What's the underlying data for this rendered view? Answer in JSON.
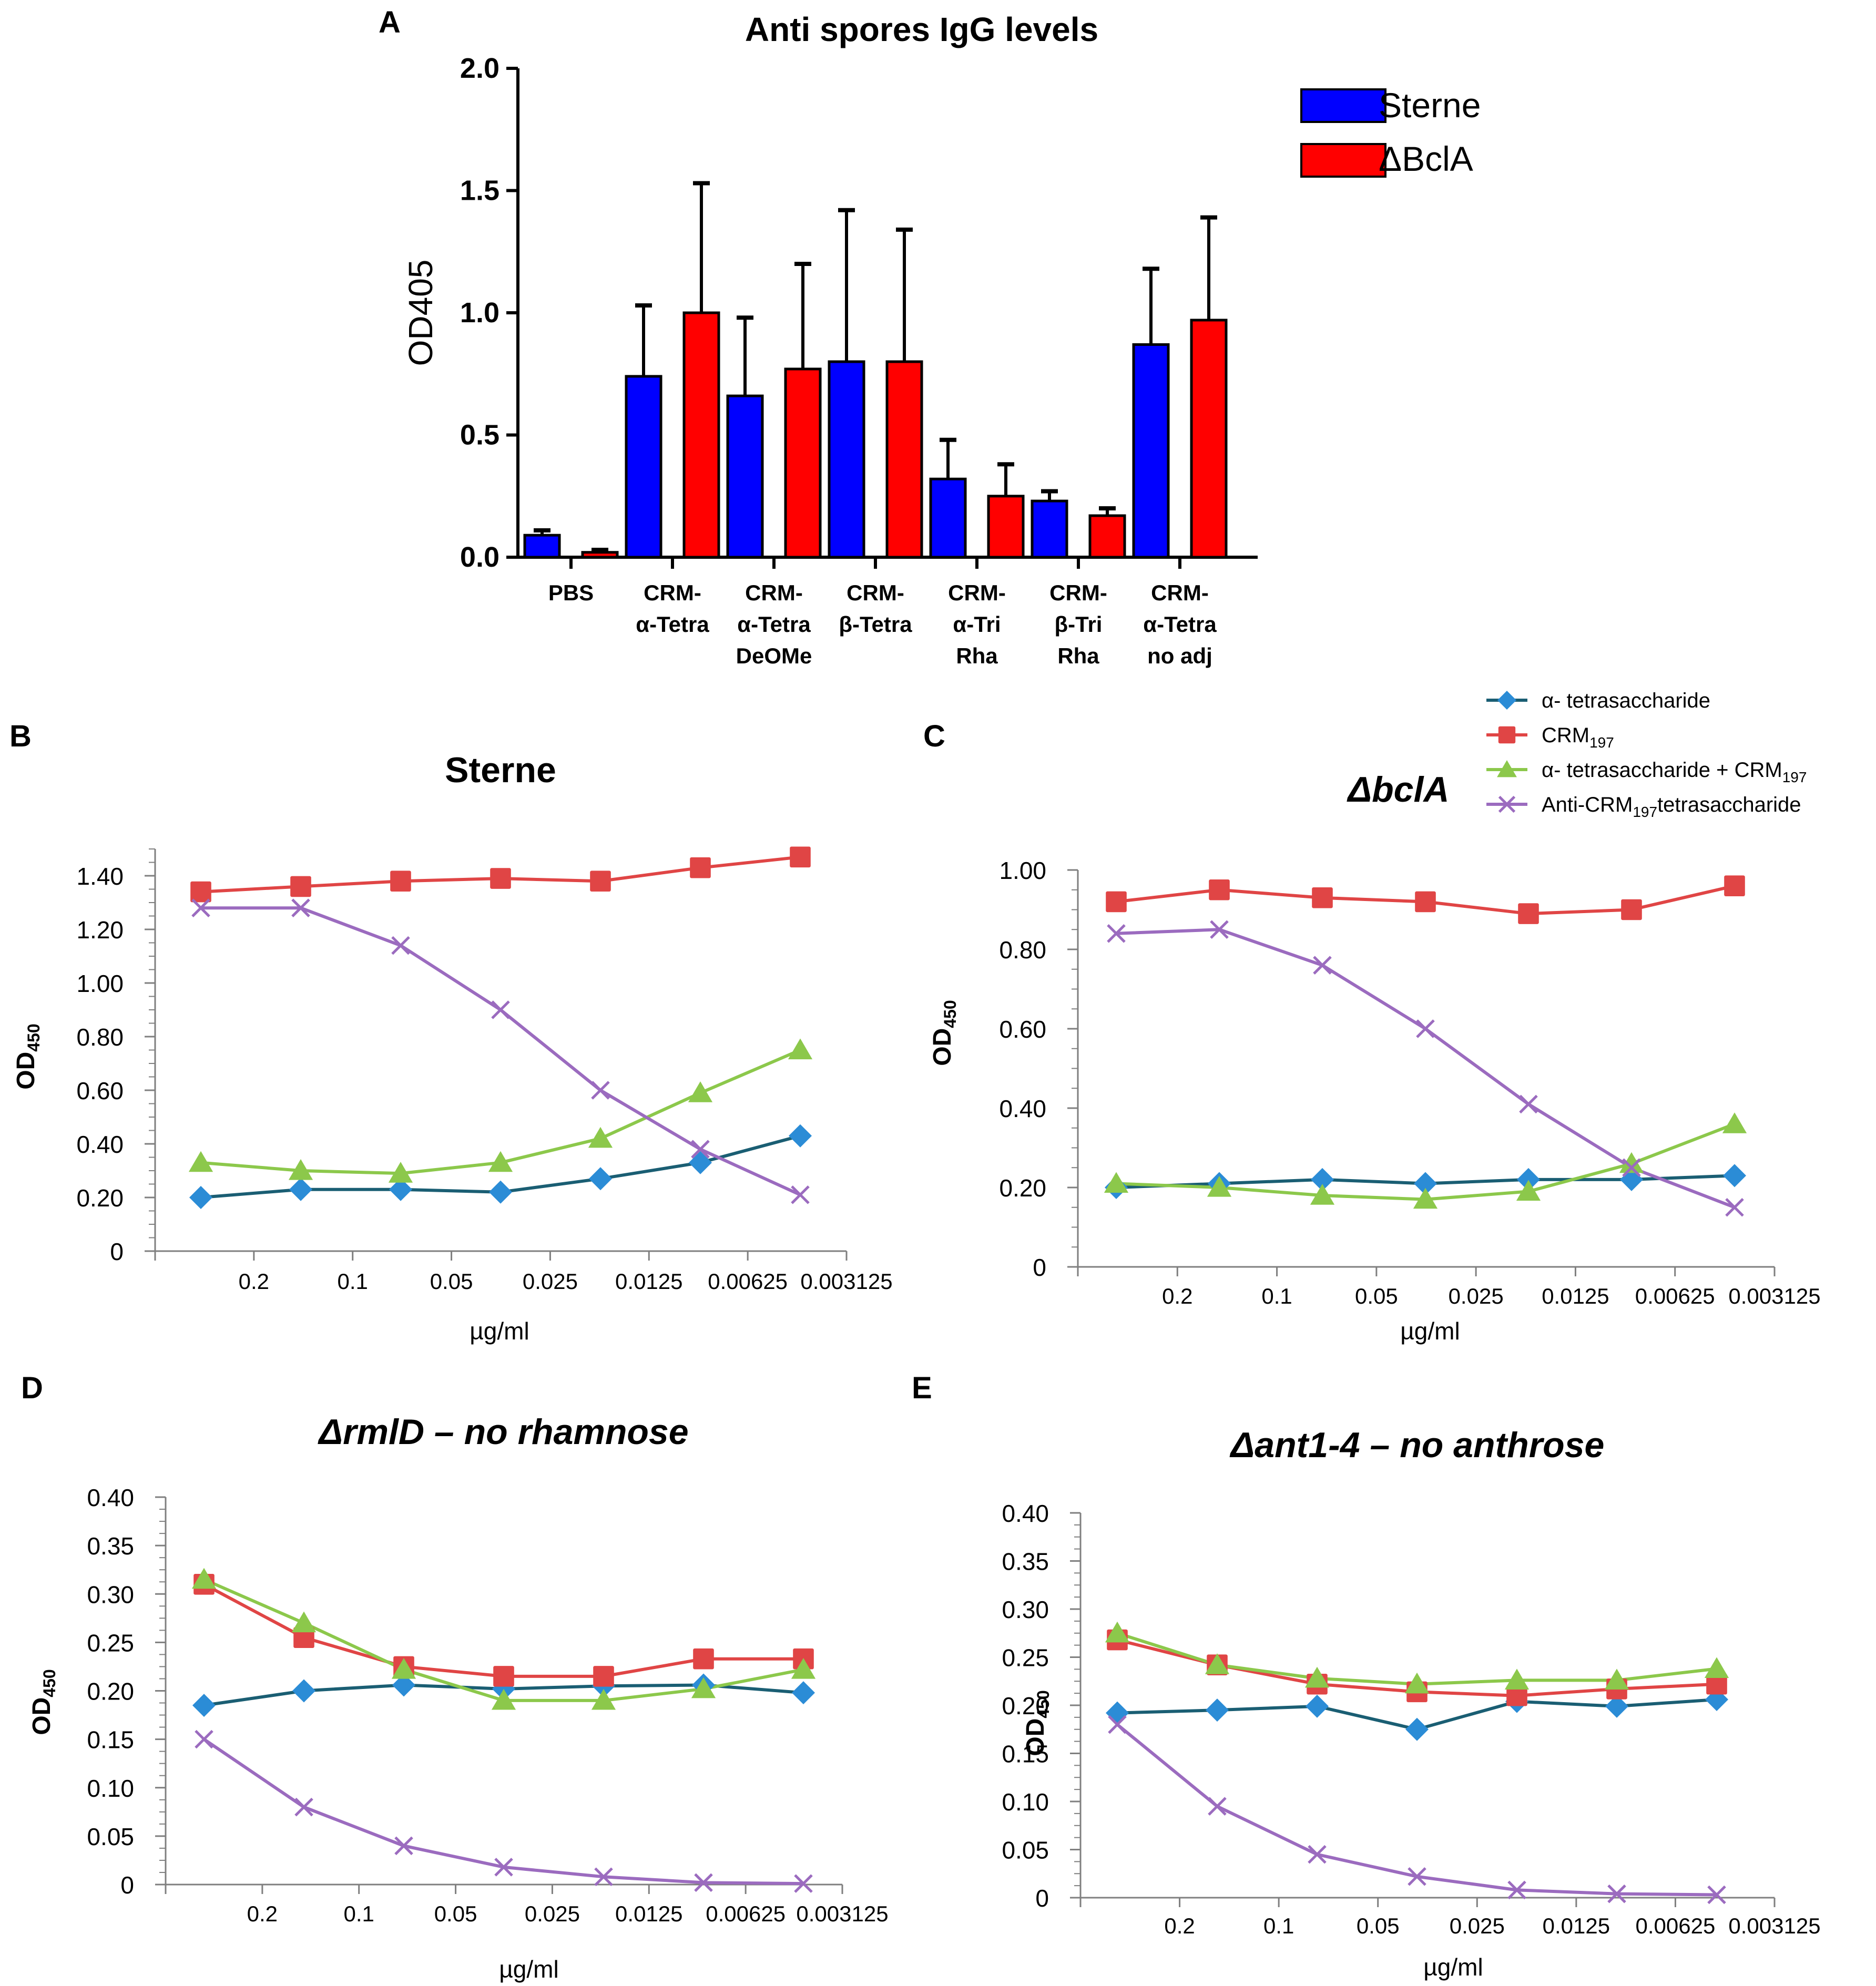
{
  "panel_letters": {
    "a": "A",
    "b": "B",
    "c": "C",
    "d": "D",
    "e": "E"
  },
  "line_legend": [
    {
      "label": "α- tetrasaccharide",
      "sub": "",
      "tail": "",
      "color": "#1f77b4",
      "marker": "diamond"
    },
    {
      "label": "CRM",
      "sub": "197",
      "tail": "",
      "color": "#e04545",
      "marker": "square"
    },
    {
      "label": "α- tetrasaccharide + CRM",
      "sub": "197",
      "tail": "",
      "color": "#8cc84b",
      "marker": "triangle"
    },
    {
      "label": "Anti-CRM",
      "sub": "197",
      "tail": "tetrasaccharide",
      "color": "#9b6bbf",
      "marker": "x"
    }
  ],
  "colors": {
    "sterne": "#0000ff",
    "bcla": "#ff0000",
    "diamond": "#2b8cd6",
    "diamond_line": "#1a5e73",
    "square": "#e04545",
    "triangle": "#8cc84b",
    "x": "#9b6bbf",
    "axis": "#7f7f7f"
  },
  "chart_data": [
    {
      "id": "A",
      "type": "bar",
      "title": "Anti spores IgG levels",
      "ylabel": "OD405",
      "xlabel": "",
      "ylim": [
        0,
        2.0
      ],
      "yticks": [
        "0.0",
        "0.5",
        "1.0",
        "1.5",
        "2.0"
      ],
      "categories": [
        "PBS",
        "CRM-\nα-Tetra",
        "CRM-\nα-Tetra\nDeOMe",
        "CRM-\nβ-Tetra",
        "CRM-\nα-Tri\nRha",
        "CRM-\nβ-Tri\nRha",
        "CRM-\nα-Tetra\nno adj"
      ],
      "series": [
        {
          "name": "Sterne",
          "values": [
            0.09,
            0.74,
            0.66,
            0.8,
            0.32,
            0.23,
            0.87
          ],
          "errors": [
            0.02,
            0.29,
            0.32,
            0.62,
            0.16,
            0.04,
            0.31
          ]
        },
        {
          "name": "ΔBclA",
          "values": [
            0.02,
            1.0,
            0.77,
            0.8,
            0.25,
            0.17,
            0.97
          ],
          "errors": [
            0.01,
            0.53,
            0.43,
            0.54,
            0.13,
            0.03,
            0.42
          ]
        }
      ]
    },
    {
      "id": "B",
      "type": "line",
      "title": "Sterne",
      "title_italic": false,
      "ylabel": "OD",
      "ylabel_sub": "450",
      "xlabel": "µg/ml",
      "ylim": [
        0,
        1.5
      ],
      "yticks": [
        {
          "v": 0,
          "t": "0"
        },
        {
          "v": 0.2,
          "t": "0.20"
        },
        {
          "v": 0.4,
          "t": "0.40"
        },
        {
          "v": 0.6,
          "t": "0.60"
        },
        {
          "v": 0.8,
          "t": "0.80"
        },
        {
          "v": 1.0,
          "t": "1.00"
        },
        {
          "v": 1.2,
          "t": "1.20"
        },
        {
          "v": 1.4,
          "t": "1.40"
        }
      ],
      "xticks": [
        "0.2",
        "0.1",
        "0.05",
        "0.025",
        "0.0125",
        "0.00625",
        "0.003125"
      ],
      "series": [
        {
          "name": "α- tetrasaccharide",
          "values": [
            0.2,
            0.23,
            0.23,
            0.22,
            0.27,
            0.33,
            0.43
          ]
        },
        {
          "name": "CRM197",
          "values": [
            1.34,
            1.36,
            1.38,
            1.39,
            1.38,
            1.43,
            1.47
          ]
        },
        {
          "name": "α- tetrasaccharide + CRM197",
          "values": [
            0.33,
            0.3,
            0.29,
            0.33,
            0.42,
            0.59,
            0.75
          ]
        },
        {
          "name": "Anti-CRM197tetrasaccharide",
          "values": [
            1.28,
            1.28,
            1.14,
            0.9,
            0.6,
            0.38,
            0.21
          ]
        }
      ]
    },
    {
      "id": "C",
      "type": "line",
      "title": "ΔbclA",
      "title_italic": true,
      "ylabel": "OD",
      "ylabel_sub": "450",
      "xlabel": "µg/ml",
      "ylim": [
        0,
        1.0
      ],
      "yticks": [
        {
          "v": 0,
          "t": "0"
        },
        {
          "v": 0.2,
          "t": "0.20"
        },
        {
          "v": 0.4,
          "t": "0.40"
        },
        {
          "v": 0.6,
          "t": "0.60"
        },
        {
          "v": 0.8,
          "t": "0.80"
        },
        {
          "v": 1.0,
          "t": "1.00"
        }
      ],
      "xticks": [
        "0.2",
        "0.1",
        "0.05",
        "0.025",
        "0.0125",
        "0.00625",
        "0.003125"
      ],
      "series": [
        {
          "name": "α- tetrasaccharide",
          "values": [
            0.2,
            0.21,
            0.22,
            0.21,
            0.22,
            0.22,
            0.23
          ]
        },
        {
          "name": "CRM197",
          "values": [
            0.92,
            0.95,
            0.93,
            0.92,
            0.89,
            0.9,
            0.96
          ]
        },
        {
          "name": "α- tetrasaccharide + CRM197",
          "values": [
            0.21,
            0.2,
            0.18,
            0.17,
            0.19,
            0.26,
            0.36
          ]
        },
        {
          "name": "Anti-CRM197tetrasaccharide",
          "values": [
            0.84,
            0.85,
            0.76,
            0.6,
            0.41,
            0.25,
            0.15
          ]
        }
      ]
    },
    {
      "id": "D",
      "type": "line",
      "title": "ΔrmlD – no rhamnose",
      "title_italic": true,
      "ylabel": "OD",
      "ylabel_sub": "450",
      "xlabel": "µg/ml",
      "ylim": [
        0,
        0.4
      ],
      "yticks": [
        {
          "v": 0,
          "t": "0"
        },
        {
          "v": 0.05,
          "t": "0.05"
        },
        {
          "v": 0.1,
          "t": "0.10"
        },
        {
          "v": 0.15,
          "t": "0.15"
        },
        {
          "v": 0.2,
          "t": "0.20"
        },
        {
          "v": 0.25,
          "t": "0.25"
        },
        {
          "v": 0.3,
          "t": "0.30"
        },
        {
          "v": 0.35,
          "t": "0.35"
        },
        {
          "v": 0.4,
          "t": "0.40"
        }
      ],
      "xticks": [
        "0.2",
        "0.1",
        "0.05",
        "0.025",
        "0.0125",
        "0.00625",
        "0.003125"
      ],
      "series": [
        {
          "name": "α- tetrasaccharide",
          "values": [
            0.185,
            0.2,
            0.206,
            0.202,
            0.205,
            0.206,
            0.198
          ]
        },
        {
          "name": "CRM197",
          "values": [
            0.31,
            0.255,
            0.225,
            0.215,
            0.215,
            0.233,
            0.233
          ]
        },
        {
          "name": "α- tetrasaccharide + CRM197",
          "values": [
            0.315,
            0.27,
            0.222,
            0.19,
            0.19,
            0.202,
            0.222
          ]
        },
        {
          "name": "Anti-CRM197tetrasaccharide",
          "values": [
            0.15,
            0.08,
            0.04,
            0.018,
            0.008,
            0.002,
            0.001
          ]
        }
      ]
    },
    {
      "id": "E",
      "type": "line",
      "title": "Δant1-4 – no anthrose",
      "title_italic": true,
      "ylabel": "OD",
      "ylabel_sub": "450",
      "xlabel": "µg/ml",
      "ylim": [
        0,
        0.4
      ],
      "yticks": [
        {
          "v": 0,
          "t": "0"
        },
        {
          "v": 0.05,
          "t": "0.05"
        },
        {
          "v": 0.1,
          "t": "0.10"
        },
        {
          "v": 0.15,
          "t": "0.15"
        },
        {
          "v": 0.2,
          "t": "0.20"
        },
        {
          "v": 0.25,
          "t": "0.25"
        },
        {
          "v": 0.3,
          "t": "0.30"
        },
        {
          "v": 0.35,
          "t": "0.35"
        },
        {
          "v": 0.4,
          "t": "0.40"
        }
      ],
      "xticks": [
        "0.2",
        "0.1",
        "0.05",
        "0.025",
        "0.0125",
        "0.00625",
        "0.003125"
      ],
      "series": [
        {
          "name": "α- tetrasaccharide",
          "values": [
            0.192,
            0.195,
            0.199,
            0.175,
            0.204,
            0.199,
            0.206
          ]
        },
        {
          "name": "CRM197",
          "values": [
            0.268,
            0.242,
            0.222,
            0.214,
            0.21,
            0.217,
            0.222
          ]
        },
        {
          "name": "α- tetrasaccharide + CRM197",
          "values": [
            0.275,
            0.242,
            0.228,
            0.222,
            0.226,
            0.226,
            0.238
          ]
        },
        {
          "name": "Anti-CRM197tetrasaccharide",
          "values": [
            0.18,
            0.095,
            0.045,
            0.022,
            0.008,
            0.004,
            0.003
          ]
        }
      ]
    }
  ]
}
